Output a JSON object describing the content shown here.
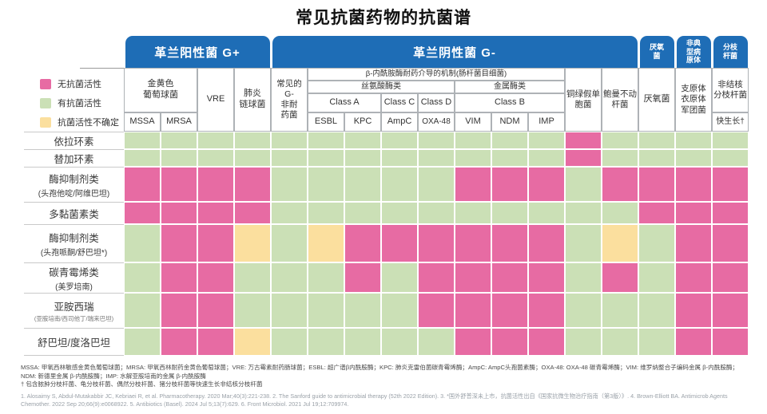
{
  "title": "常见抗菌药物的抗菌谱",
  "tabs": {
    "gram_positive": "革兰阳性菌 G+",
    "gram_negative": "革兰阴性菌 G-",
    "anaerobes": "厌氧\n菌",
    "atypical": "非典\n型病\n原体",
    "mycobacteria": "分枝\n杆菌"
  },
  "header": {
    "staph": "金黄色\n葡萄球菌",
    "mssa": "MSSA",
    "mrsa": "MRSA",
    "vre": "VRE",
    "pneumococcus": "肺炎\n链球菌",
    "common_gn": "常见的\nG-\n非耐\n药菌",
    "beta_mech": "β-内酰胺酶耐药介导的机制(肠杆菌目细菌)",
    "serine": "丝氨酸酶类",
    "metallo": "金属酶类",
    "class_a": "Class A",
    "class_c": "Class C",
    "class_d": "Class D",
    "class_b": "Class B",
    "esbl": "ESBL",
    "kpc": "KPC",
    "ampc": "AmpC",
    "oxa48": "OXA-48",
    "vim": "VIM",
    "ndm": "NDM",
    "imp": "IMP",
    "pseudomonas": "铜绿假单\n胞菌",
    "acinetobacter": "鲍曼不动\n杆菌",
    "anaerobes": "厌氧菌",
    "atypical": "支原体\n衣原体\n军团菌",
    "ntm": "非结核\n分枝杆菌",
    "fast_growing": "快生长†"
  },
  "chart_data": {
    "type": "heatmap",
    "title": "常见抗菌药物的抗菌谱",
    "legend": [
      {
        "key": "P",
        "label": "无抗菌活性",
        "color": "#e76ba3"
      },
      {
        "key": "G",
        "label": "有抗菌活性",
        "color": "#cbe0b6"
      },
      {
        "key": "Y",
        "label": "抗菌活性不确定",
        "color": "#fbdf9e"
      }
    ],
    "column_groups": [
      "革兰阳性菌 G+",
      "革兰阴性菌 G-",
      "厌氧菌",
      "非典型病原体",
      "分枝杆菌"
    ],
    "columns": [
      "MSSA",
      "MRSA",
      "VRE",
      "肺炎链球菌",
      "常见的G-非耐药菌",
      "ESBL",
      "KPC",
      "AmpC",
      "OXA-48",
      "VIM",
      "NDM",
      "IMP",
      "铜绿假单胞菌",
      "鲍曼不动杆菌",
      "厌氧菌",
      "支原体衣原体军团菌",
      "非结核分枝杆菌快生长†"
    ],
    "rows": [
      {
        "drug": "依拉环素",
        "sub": "",
        "values": [
          "G",
          "G",
          "G",
          "G",
          "G",
          "G",
          "G",
          "G",
          "G",
          "G",
          "G",
          "G",
          "P",
          "G",
          "G",
          "G",
          "G"
        ]
      },
      {
        "drug": "替加环素",
        "sub": "",
        "values": [
          "G",
          "G",
          "G",
          "G",
          "G",
          "G",
          "G",
          "G",
          "G",
          "G",
          "G",
          "G",
          "P",
          "G",
          "G",
          "G",
          "G"
        ]
      },
      {
        "drug": "酶抑制剂类",
        "sub": "(头孢他啶/阿维巴坦)",
        "values": [
          "P",
          "P",
          "P",
          "P",
          "G",
          "G",
          "G",
          "G",
          "G",
          "P",
          "P",
          "P",
          "G",
          "P",
          "P",
          "P",
          "P"
        ]
      },
      {
        "drug": "多黏菌素类",
        "sub": "",
        "values": [
          "P",
          "P",
          "P",
          "P",
          "G",
          "G",
          "G",
          "G",
          "G",
          "G",
          "G",
          "G",
          "G",
          "G",
          "P",
          "P",
          "P"
        ]
      },
      {
        "drug": "酶抑制剂类",
        "sub": "(头孢哌酮/舒巴坦*)",
        "values": [
          "G",
          "P",
          "P",
          "Y",
          "G",
          "Y",
          "P",
          "P",
          "P",
          "P",
          "P",
          "P",
          "G",
          "Y",
          "G",
          "P",
          "P"
        ]
      },
      {
        "drug": "碳青霉烯类",
        "sub": "(美罗培南)",
        "values": [
          "G",
          "P",
          "P",
          "G",
          "G",
          "G",
          "P",
          "G",
          "P",
          "P",
          "P",
          "P",
          "G",
          "P",
          "G",
          "P",
          "P"
        ]
      },
      {
        "drug": "亚胺西瑞",
        "sub": "(亚胺培南/西司他丁/瑞来巴坦)",
        "values": [
          "G",
          "P",
          "P",
          "G",
          "G",
          "G",
          "G",
          "G",
          "P",
          "P",
          "P",
          "P",
          "G",
          "G",
          "G",
          "P",
          "P"
        ]
      },
      {
        "drug": "舒巴坦/度洛巴坦",
        "sub": "",
        "values": [
          "G",
          "P",
          "P",
          "Y",
          "G",
          "G",
          "G",
          "G",
          "G",
          "P",
          "P",
          "P",
          "G",
          "G",
          "G",
          "P",
          "P"
        ]
      }
    ]
  },
  "footnotes": {
    "abbrev": "MSSA: 甲氧西林敏感金黄色葡萄球菌；MRSA: 甲氧西林耐药金黄色葡萄球菌；VRE: 万古霉素耐药肠球菌；ESBL: 超广谱β内酰胺酶；KPC: 肺炎克雷伯菌碳青霉烯酶；AmpC: AmpC头孢菌素酶；OXA-48: OXA-48 碳青霉烯酶；VIM: 维罗纳整合子编码金属 β-内酰胺酶；NDM: 新德里金属 β-内酰胺酶；IMP: 水解亚胺培南的金属 β-内酰胺酶",
    "dagger": "† 包含脓肿分枝杆菌、龟分枝杆菌、偶然分枝杆菌、猪分枝杆菌等快速生长非结核分枝杆菌",
    "references": "1. Alosaimy S, Abdul-Mutakabbir JC, Kebriaei R, et al. Pharmacotherapy. 2020 Mar;40(3):221-238.  2. The Sanford guide to antimicrobial therapy (52th 2022 Edition).  3. *国外舒普深未上市，抗菌活性出自《国家抗微生物治疗指南（第3版）》.  4. Brown-Elliott BA. Antimicrob Agents Chemother. 2022 Sep 20;66(9):e0068922.  5. Antibiotics (Basel). 2024 Jul 5;13(7):629.  6. Front Microbiol. 2021 Jul 19;12:709974."
  }
}
